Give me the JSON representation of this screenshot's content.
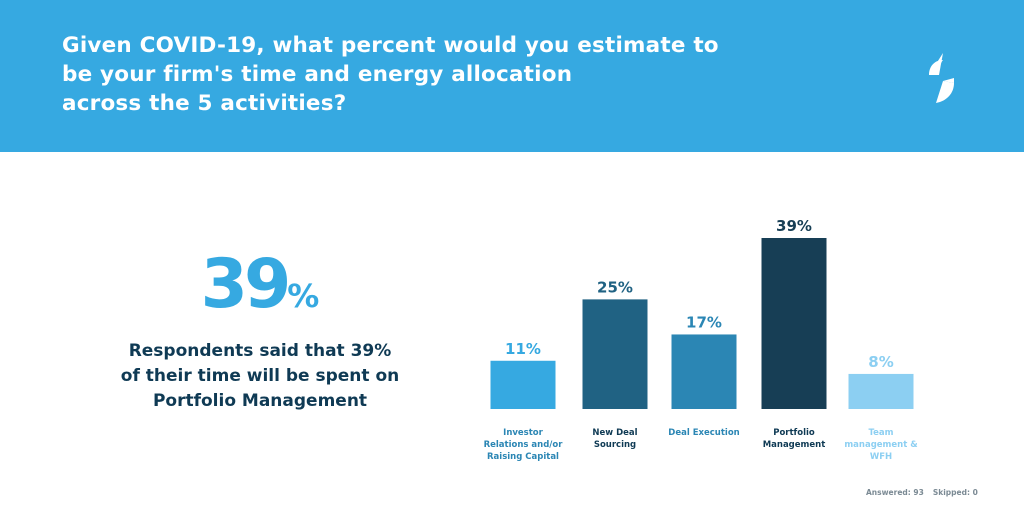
{
  "header": {
    "title_lines": [
      "Given COVID-19, what percent would you estimate to",
      "be your firm's time and energy allocation",
      "across the 5 activities?"
    ],
    "logo": "brand-s-logo-icon"
  },
  "highlight": {
    "number": "39",
    "percent_sign": "%",
    "text_lines": [
      "Respondents said that 39%",
      "of their time will be spent on",
      "Portfolio Management"
    ]
  },
  "chart_data": {
    "type": "bar",
    "title": "Given COVID-19, what percent would you estimate to be your firm's time and energy allocation across the 5 activities?",
    "categories": [
      [
        "Investor",
        "Relations and/or",
        "Raising Capital"
      ],
      [
        "New Deal",
        "Sourcing"
      ],
      [
        "Deal Execution"
      ],
      [
        "Portfolio",
        "Management"
      ],
      [
        "Team",
        "management &",
        "WFH"
      ]
    ],
    "values": [
      11,
      25,
      17,
      39,
      8
    ],
    "value_labels": [
      "11%",
      "25%",
      "17%",
      "39%",
      "8%"
    ],
    "bar_colors": [
      "#36a9e1",
      "#206283",
      "#2b86b4",
      "#173e55",
      "#8ccff2"
    ],
    "category_label_colors": [
      "#2b86b4",
      "#0f3a54",
      "#2b86b4",
      "#0f3a54",
      "#8ccff2"
    ],
    "ylim": [
      0,
      39
    ],
    "xlabel": "",
    "ylabel": "",
    "grid": false
  },
  "footer": {
    "answered": "Answered: 93",
    "skipped": "Skipped: 0"
  },
  "colors": {
    "header_bg": "#36a9e1",
    "accent": "#36a9e1",
    "dark_text": "#0f3a54"
  }
}
